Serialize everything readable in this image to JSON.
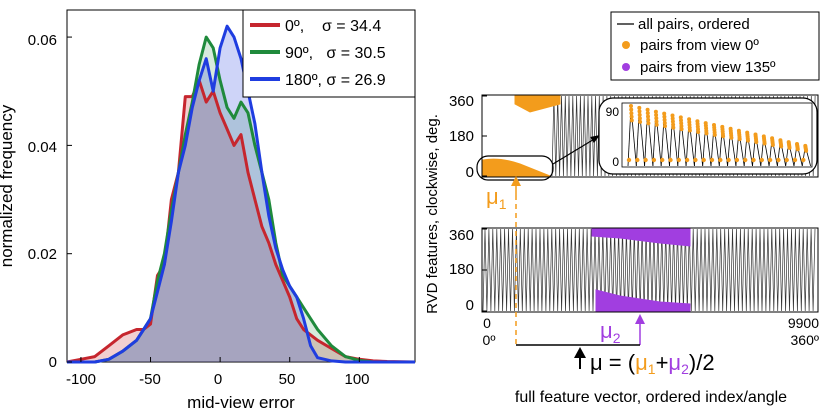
{
  "left": {
    "ylabel": "normalized frequency",
    "xlabel": "mid-view error",
    "yticks": [
      "0",
      "0.02",
      "0.04",
      "0.06"
    ],
    "xticks": [
      "-100",
      "-50",
      "0",
      "50",
      "100"
    ]
  },
  "right": {
    "ylabel": "RVD features, clockwise, deg.",
    "xlabel": "full feature vector, ordered index/angle",
    "legend": {
      "all": "all pairs, ordered",
      "view0": "pairs from view 0º",
      "view135": "pairs from view 135º"
    },
    "yticks_top": [
      "0",
      "180",
      "360"
    ],
    "yticks_bottom": [
      "0",
      "180",
      "360"
    ],
    "xtick_left_index": "0",
    "xtick_left_angle": "0º",
    "xtick_right_index": "9900",
    "xtick_right_angle": "360º",
    "inset_yticks": [
      "0",
      "90"
    ],
    "mu1": "μ",
    "mu1_sub": "1",
    "mu2": "μ",
    "mu2_sub": "2",
    "formula_mu": "μ = (",
    "formula_mu1": "μ",
    "formula_sub1": "1",
    "formula_plus": "+",
    "formula_mu2": "μ",
    "formula_sub2": "2",
    "formula_tail": ")/2"
  },
  "colors": {
    "s0": "#c6262e",
    "s90": "#1f8a3c",
    "s180": "#1f3de0",
    "orange": "#f39c1c",
    "purple": "#a13ee0"
  },
  "chart_data": [
    {
      "type": "area",
      "xlabel": "mid-view error",
      "ylabel": "normalized frequency",
      "xlim": [
        -110,
        140
      ],
      "ylim": [
        0,
        0.065
      ],
      "x": [
        -110,
        -100,
        -90,
        -80,
        -70,
        -60,
        -55,
        -50,
        -45,
        -40,
        -35,
        -30,
        -25,
        -20,
        -15,
        -10,
        -5,
        0,
        5,
        10,
        15,
        20,
        25,
        30,
        35,
        40,
        45,
        50,
        55,
        60,
        65,
        70,
        80,
        90,
        100,
        110,
        120,
        140
      ],
      "series": [
        {
          "name": "0º,    σ = 34.4",
          "values": [
            0,
            0.0005,
            0.001,
            0.003,
            0.005,
            0.006,
            0.006,
            0.007,
            0.016,
            0.018,
            0.03,
            0.035,
            0.049,
            0.049,
            0.052,
            0.048,
            0.05,
            0.046,
            0.043,
            0.04,
            0.042,
            0.035,
            0.03,
            0.025,
            0.022,
            0.018,
            0.015,
            0.012,
            0.008,
            0.006,
            0.005,
            0.004,
            0.0025,
            0.001,
            0.0005,
            0.0002,
            0.0001,
            0
          ]
        },
        {
          "name": "90º,   σ = 30.5",
          "values": [
            0,
            0,
            0,
            0.0005,
            0.002,
            0.004,
            0.006,
            0.008,
            0.015,
            0.02,
            0.028,
            0.035,
            0.042,
            0.048,
            0.055,
            0.06,
            0.058,
            0.052,
            0.047,
            0.045,
            0.048,
            0.046,
            0.04,
            0.035,
            0.03,
            0.022,
            0.016,
            0.014,
            0.012,
            0.01,
            0.008,
            0.006,
            0.003,
            0.001,
            0.0003,
            0,
            0,
            0
          ]
        },
        {
          "name": "180º, σ = 26.9",
          "values": [
            0,
            0,
            0,
            0.0005,
            0.002,
            0.004,
            0.006,
            0.008,
            0.013,
            0.018,
            0.026,
            0.035,
            0.04,
            0.047,
            0.052,
            0.056,
            0.05,
            0.058,
            0.062,
            0.06,
            0.056,
            0.05,
            0.044,
            0.035,
            0.027,
            0.021,
            0.017,
            0.014,
            0.012,
            0.008,
            0.003,
            0.0008,
            0.0002,
            0,
            0,
            0,
            0,
            0
          ]
        }
      ],
      "legend": "top-right"
    },
    {
      "type": "line",
      "title": "",
      "xlabel": "full feature vector, ordered index/angle",
      "ylabel": "RVD features, clockwise, deg.",
      "xlim": [
        0,
        9900
      ],
      "ylim": [
        0,
        360
      ],
      "series": [
        {
          "name": "all pairs, ordered"
        },
        {
          "name": "pairs from view 0º"
        },
        {
          "name": "pairs from view 135º"
        }
      ]
    }
  ]
}
